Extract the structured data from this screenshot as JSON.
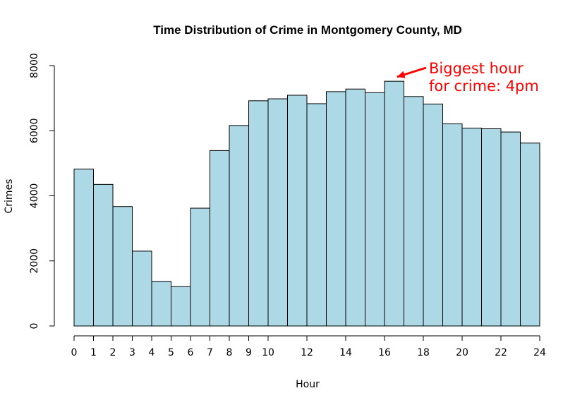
{
  "chart_data": {
    "type": "bar",
    "title": "Time Distribution of Crime in Montgomery County, MD",
    "xlabel": "Hour",
    "ylabel": "Crimes",
    "bin_edges": [
      0,
      1,
      2,
      3,
      4,
      5,
      6,
      7,
      8,
      9,
      10,
      11,
      12,
      13,
      14,
      15,
      16,
      17,
      18,
      19,
      20,
      21,
      22,
      23,
      24
    ],
    "values": [
      4820,
      4350,
      3670,
      2300,
      1370,
      1210,
      3620,
      5390,
      6160,
      6920,
      6980,
      7090,
      6830,
      7200,
      7280,
      7170,
      7520,
      7050,
      6820,
      6210,
      6080,
      6060,
      5960,
      5620
    ],
    "xlim": [
      0,
      24
    ],
    "ylim": [
      0,
      8000
    ],
    "x_ticks": [
      0,
      1,
      2,
      3,
      4,
      5,
      6,
      7,
      8,
      9,
      10,
      12,
      14,
      16,
      18,
      20,
      22,
      24
    ],
    "y_ticks": [
      0,
      2000,
      4000,
      6000,
      8000
    ],
    "grid": false,
    "bar_color": "#add8e6",
    "annotation": {
      "lines": [
        "Biggest hour",
        "for crime: 4pm"
      ],
      "color": "#ff0000",
      "points_to_hour": 16.5
    }
  }
}
